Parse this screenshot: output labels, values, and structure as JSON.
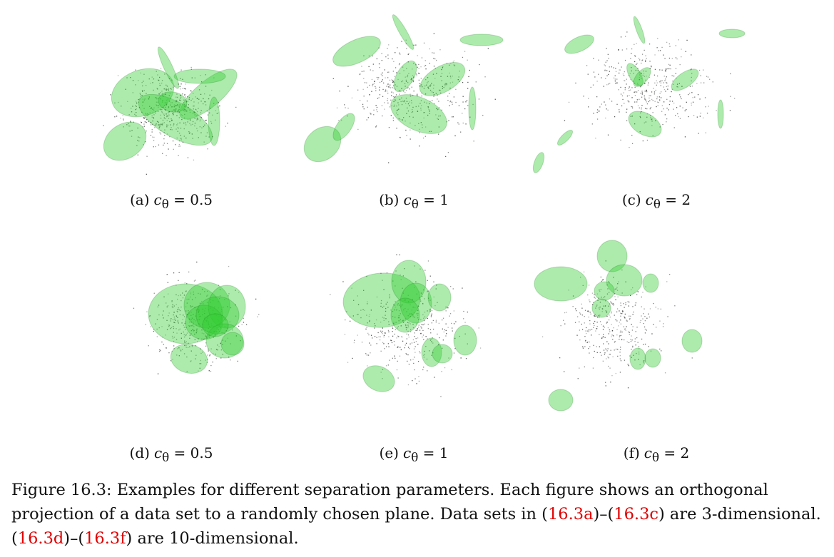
{
  "panels": [
    {
      "letter": "(a)",
      "param": "c",
      "sub": "θ",
      "op": " = ",
      "value": "0.5"
    },
    {
      "letter": "(b)",
      "param": "c",
      "sub": "θ",
      "op": " = ",
      "value": "1"
    },
    {
      "letter": "(c)",
      "param": "c",
      "sub": "θ",
      "op": " = ",
      "value": "2"
    },
    {
      "letter": "(d)",
      "param": "c",
      "sub": "θ",
      "op": " = ",
      "value": "0.5"
    },
    {
      "letter": "(e)",
      "param": "c",
      "sub": "θ",
      "op": " = ",
      "value": "1"
    },
    {
      "letter": "(f)",
      "param": "c",
      "sub": "θ",
      "op": " = ",
      "value": "2"
    }
  ],
  "caption": {
    "label": "Figure 16.3:",
    "text1": " Examples for different separation parameters. Each figure shows an orthogonal projection of a data set to a randomly chosen plane. Data sets in (",
    "ref_a": "16.3a",
    "text2": ")–(",
    "ref_c": "16.3c",
    "text3": ") are 3-dimensional. (",
    "ref_d": "16.3d",
    "text4": ")–(",
    "ref_f": "16.3f",
    "text5": ") are 10-dimensional."
  },
  "colors": {
    "ellipse_fill": "#33cc33",
    "point_color": "#333333",
    "reference_link": "#e00000"
  }
}
